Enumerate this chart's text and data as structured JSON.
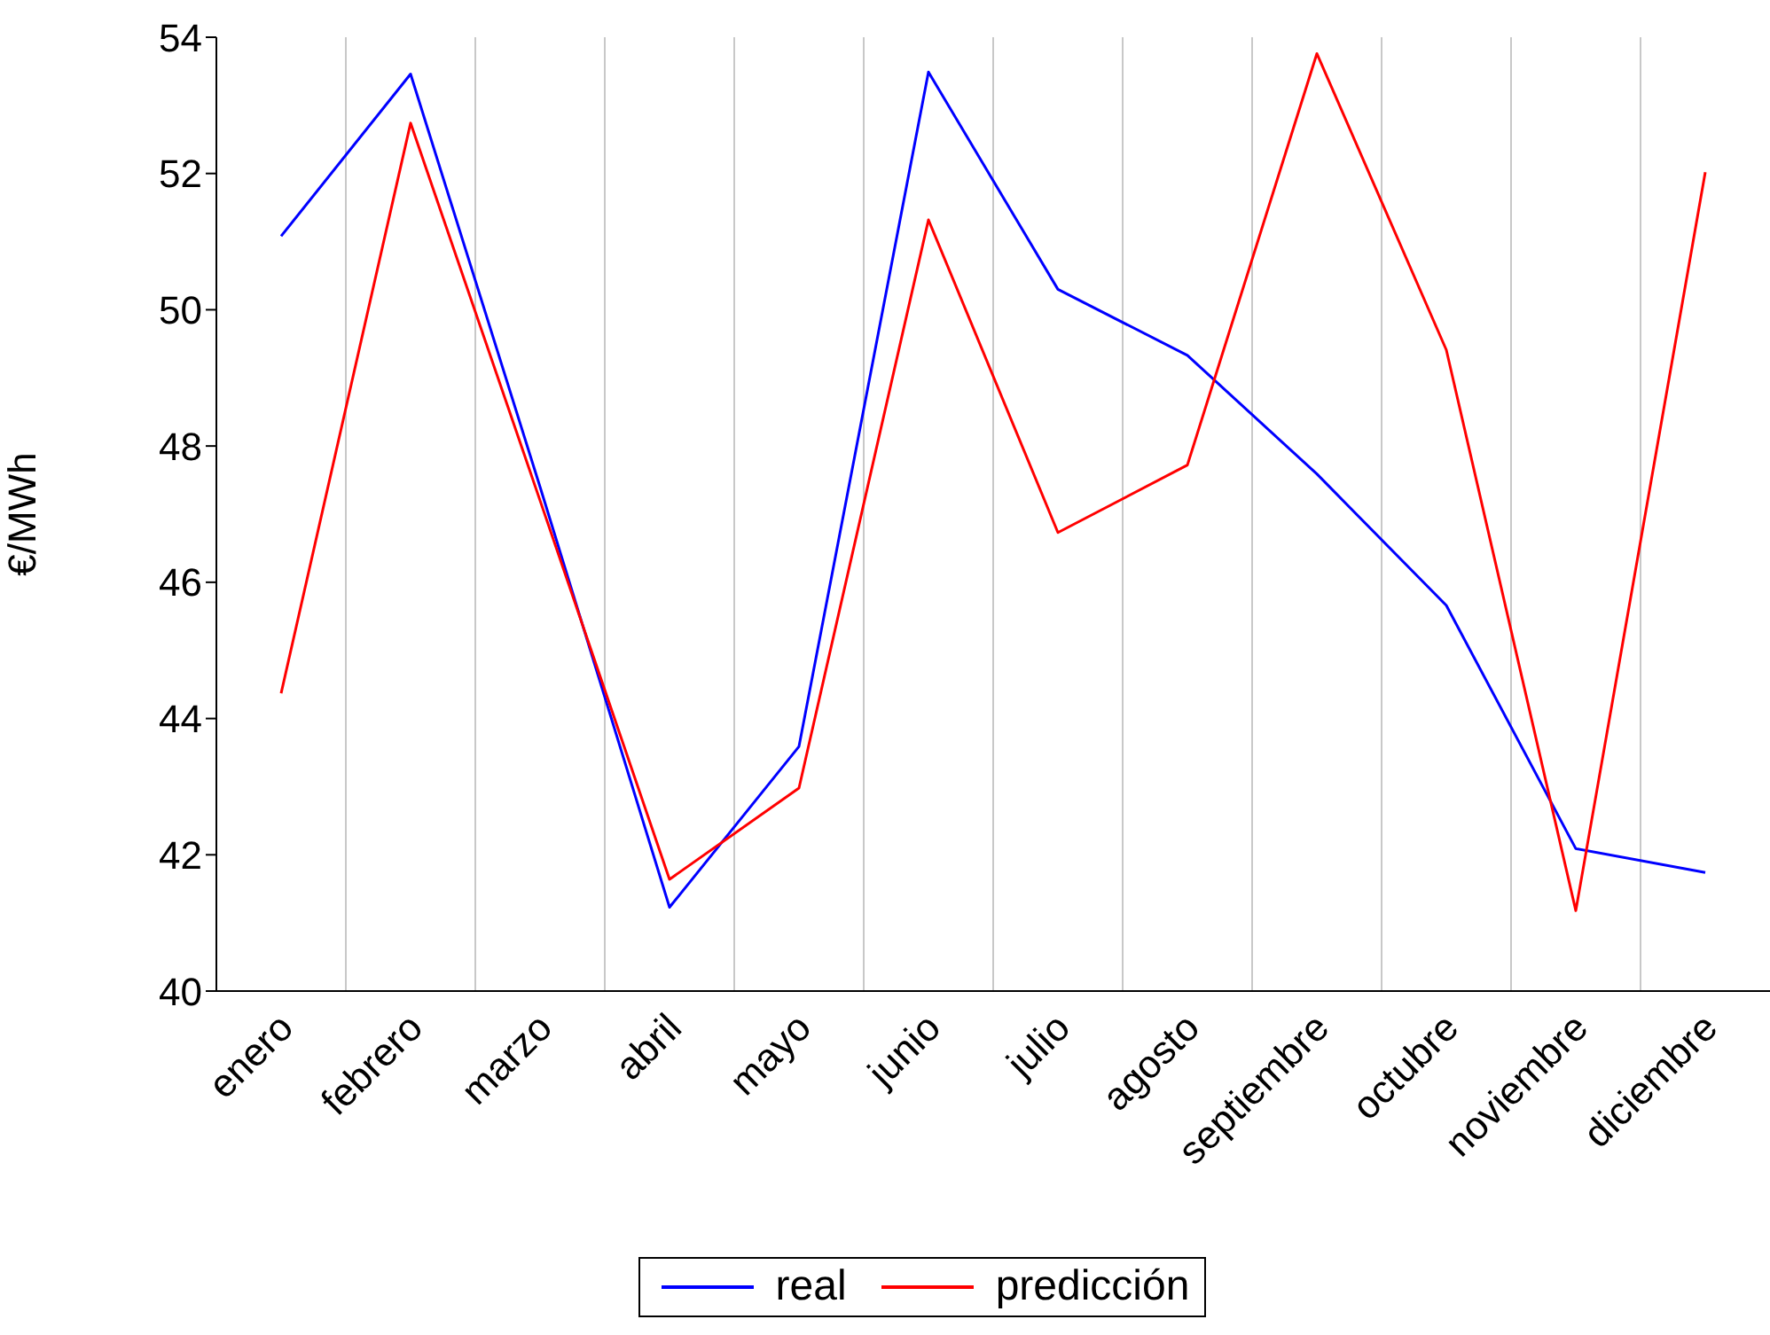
{
  "chart_data": {
    "type": "line",
    "ylabel": "€/MWh",
    "categories": [
      "enero",
      "febrero",
      "marzo",
      "abril",
      "mayo",
      "junio",
      "julio",
      "agosto",
      "septiembre",
      "octubre",
      "noviembre",
      "diciembre"
    ],
    "series": [
      {
        "name": "real",
        "color": "#0000ff",
        "values": [
          51.08,
          53.46,
          47.4,
          41.23,
          43.59,
          53.49,
          50.3,
          49.33,
          47.59,
          45.66,
          42.09,
          41.74
        ]
      },
      {
        "name": "predicción",
        "color": "#ff0000",
        "values": [
          44.37,
          52.74,
          47.2,
          41.64,
          42.98,
          51.32,
          46.73,
          47.72,
          53.76,
          49.41,
          41.18,
          52.02
        ]
      }
    ],
    "ylim": [
      40,
      54
    ],
    "yticks": [
      40,
      42,
      44,
      46,
      48,
      50,
      52,
      54
    ],
    "grid": "x",
    "legend": "bottom",
    "marker": "none",
    "line_style": "solid"
  }
}
